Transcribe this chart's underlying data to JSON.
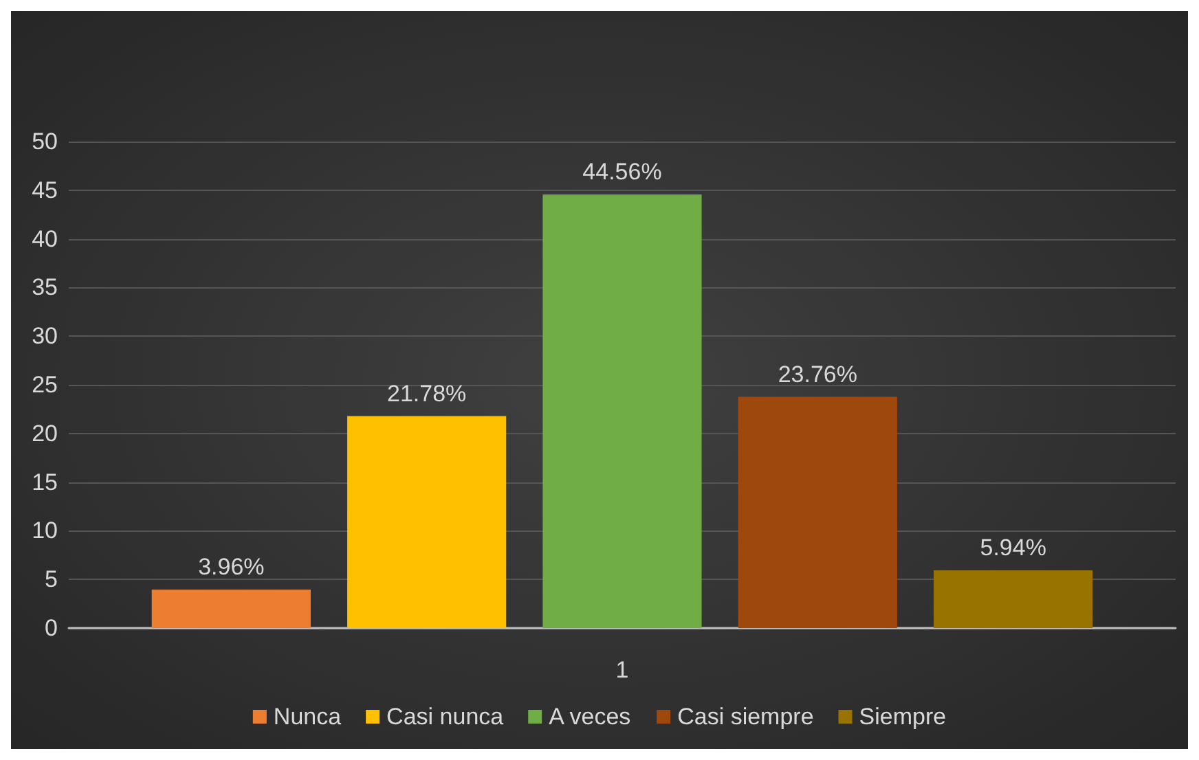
{
  "chart_data": {
    "type": "bar",
    "categories": [
      "1"
    ],
    "series": [
      {
        "name": "Nunca",
        "color": "#ed7d31",
        "values": [
          3.96
        ],
        "value_labels": [
          "3.96%"
        ]
      },
      {
        "name": "Casi nunca",
        "color": "#ffc000",
        "values": [
          21.78
        ],
        "value_labels": [
          "21.78%"
        ]
      },
      {
        "name": "A veces",
        "color": "#70ad47",
        "values": [
          44.56
        ],
        "value_labels": [
          "44.56%"
        ]
      },
      {
        "name": "Casi siempre",
        "color": "#9e480e",
        "values": [
          23.76
        ],
        "value_labels": [
          "23.76%"
        ]
      },
      {
        "name": "Siempre",
        "color": "#997300",
        "values": [
          5.94
        ],
        "value_labels": [
          "5.94%"
        ]
      }
    ],
    "ylim": [
      0,
      50
    ],
    "yticks": [
      0,
      5,
      10,
      15,
      20,
      25,
      30,
      35,
      40,
      45,
      50
    ],
    "grid": "y",
    "legend": "bottom"
  }
}
